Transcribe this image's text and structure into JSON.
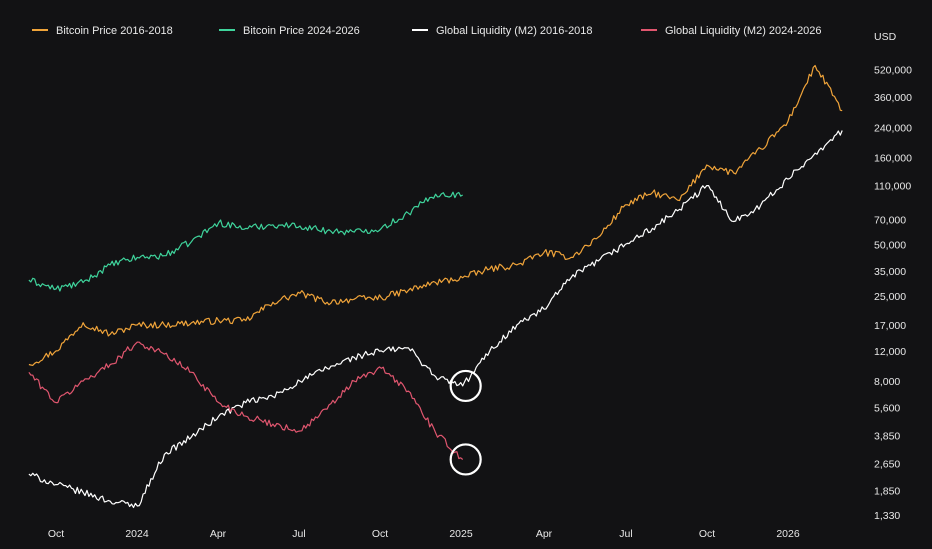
{
  "chart_data": {
    "type": "line",
    "title": "",
    "xlabel": "",
    "ylabel": "USD",
    "y_scale": "log",
    "ylim": [
      1330,
      600000
    ],
    "x_tick_labels": [
      "Oct",
      "2024",
      "Apr",
      "Jul",
      "Oct",
      "2025",
      "Apr",
      "Jul",
      "Oct",
      "2026"
    ],
    "y_tick_labels": [
      "520,000",
      "360,000",
      "240,000",
      "160,000",
      "110,000",
      "70,000",
      "50,000",
      "35,000",
      "25,000",
      "17,000",
      "12,000",
      "8,000",
      "5,600",
      "3,850",
      "2,650",
      "1,850",
      "1,330"
    ],
    "y_tick_values": [
      520000,
      360000,
      240000,
      160000,
      110000,
      70000,
      50000,
      35000,
      25000,
      17000,
      12000,
      8000,
      5600,
      3850,
      2650,
      1850,
      1330
    ],
    "legend_position": "top",
    "grid": false,
    "x_index_labels": [
      "Oct",
      "2024",
      "Apr",
      "Jul",
      "Oct",
      "2025",
      "Apr",
      "Jul",
      "Oct",
      "2026"
    ],
    "series": [
      {
        "name": "Bitcoin Price 2016-2018",
        "color": "#f0a43a",
        "x": [
          "2023-09-01",
          "2023-10-01",
          "2023-11-01",
          "2023-12-01",
          "2024-01-01",
          "2024-02-01",
          "2024-03-01",
          "2024-04-01",
          "2024-05-01",
          "2024-06-01",
          "2024-07-01",
          "2024-08-01",
          "2024-09-01",
          "2024-10-01",
          "2024-11-01",
          "2024-12-01",
          "2025-01-01",
          "2025-02-01",
          "2025-03-01",
          "2025-04-01",
          "2025-05-01",
          "2025-06-01",
          "2025-07-01",
          "2025-08-01",
          "2025-09-01",
          "2025-10-01",
          "2025-11-01",
          "2025-12-01",
          "2026-01-01",
          "2026-02-01",
          "2026-03-01"
        ],
        "values": [
          10000,
          12000,
          17500,
          15000,
          17000,
          17000,
          17500,
          18000,
          18000,
          23000,
          26000,
          23000,
          24000,
          24500,
          27000,
          30000,
          32000,
          36000,
          38000,
          45000,
          42000,
          55000,
          85000,
          100000,
          90000,
          145000,
          130000,
          180000,
          260000,
          550000,
          300000
        ]
      },
      {
        "name": "Bitcoin Price 2024-2026",
        "color": "#3fd49c",
        "x": [
          "2023-09-01",
          "2023-10-01",
          "2023-11-01",
          "2023-12-01",
          "2024-01-01",
          "2024-02-01",
          "2024-03-01",
          "2024-04-01",
          "2024-05-01",
          "2024-06-01",
          "2024-07-01",
          "2024-08-01",
          "2024-09-01",
          "2024-10-01",
          "2024-11-01",
          "2024-12-01",
          "2025-01-01"
        ],
        "values": [
          31000,
          27500,
          30000,
          38000,
          42000,
          43000,
          52000,
          67000,
          62000,
          65000,
          64000,
          60000,
          59000,
          62000,
          76000,
          98000,
          97000
        ]
      },
      {
        "name": "Global Liquidity (M2) 2016-2018",
        "color": "#ffffff",
        "x": [
          "2023-09-01",
          "2023-10-01",
          "2023-11-01",
          "2023-12-01",
          "2024-01-01",
          "2024-02-01",
          "2024-03-01",
          "2024-04-01",
          "2024-05-01",
          "2024-06-01",
          "2024-07-01",
          "2024-08-01",
          "2024-09-01",
          "2024-10-01",
          "2024-11-01",
          "2024-12-01",
          "2025-01-01",
          "2025-02-01",
          "2025-03-01",
          "2025-04-01",
          "2025-05-01",
          "2025-06-01",
          "2025-07-01",
          "2025-08-01",
          "2025-09-01",
          "2025-10-01",
          "2025-11-01",
          "2025-12-01",
          "2026-01-01",
          "2026-02-01",
          "2026-03-01"
        ],
        "values": [
          2300,
          2000,
          1800,
          1600,
          1500,
          3000,
          3800,
          5000,
          6000,
          6500,
          8000,
          9500,
          11000,
          12000,
          12500,
          8500,
          7500,
          12000,
          17000,
          21000,
          32000,
          40000,
          50000,
          62000,
          80000,
          110000,
          68000,
          85000,
          120000,
          170000,
          230000
        ]
      },
      {
        "name": "Global Liquidity (M2) 2024-2026",
        "color": "#e0566f",
        "x": [
          "2023-09-01",
          "2023-10-01",
          "2023-11-01",
          "2023-12-01",
          "2024-01-01",
          "2024-02-01",
          "2024-03-01",
          "2024-04-01",
          "2024-05-01",
          "2024-06-01",
          "2024-07-01",
          "2024-08-01",
          "2024-09-01",
          "2024-10-01",
          "2024-11-01",
          "2024-12-01",
          "2025-01-01"
        ],
        "values": [
          9000,
          6000,
          8000,
          10000,
          13500,
          11500,
          9000,
          6000,
          5000,
          4500,
          4100,
          5500,
          8000,
          9500,
          7000,
          4000,
          2800
        ]
      }
    ],
    "highlights": [
      {
        "series": "Global Liquidity (M2) 2016-2018",
        "x": "2025-01-01"
      },
      {
        "series": "Global Liquidity (M2) 2024-2026",
        "x": "2025-01-01"
      }
    ]
  }
}
